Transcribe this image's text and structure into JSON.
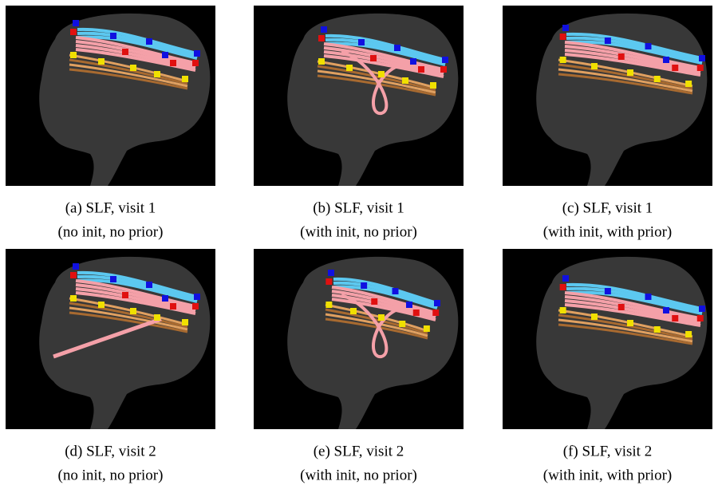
{
  "figure": {
    "panels": [
      {
        "caption": [
          "(a) SLF, visit 1",
          "(no init, no prior)"
        ]
      },
      {
        "caption": [
          "(b) SLF, visit 1",
          "(with init, no prior)"
        ]
      },
      {
        "caption": [
          "(c) SLF, visit 1",
          "(with init, with prior)"
        ]
      },
      {
        "caption": [
          "(d) SLF, visit 2",
          "(no init, no prior)"
        ]
      },
      {
        "caption": [
          "(e) SLF, visit 2",
          "(with init, no prior)"
        ]
      },
      {
        "caption": [
          "(f) SLF, visit 2",
          "(with init, with prior)"
        ]
      }
    ]
  }
}
